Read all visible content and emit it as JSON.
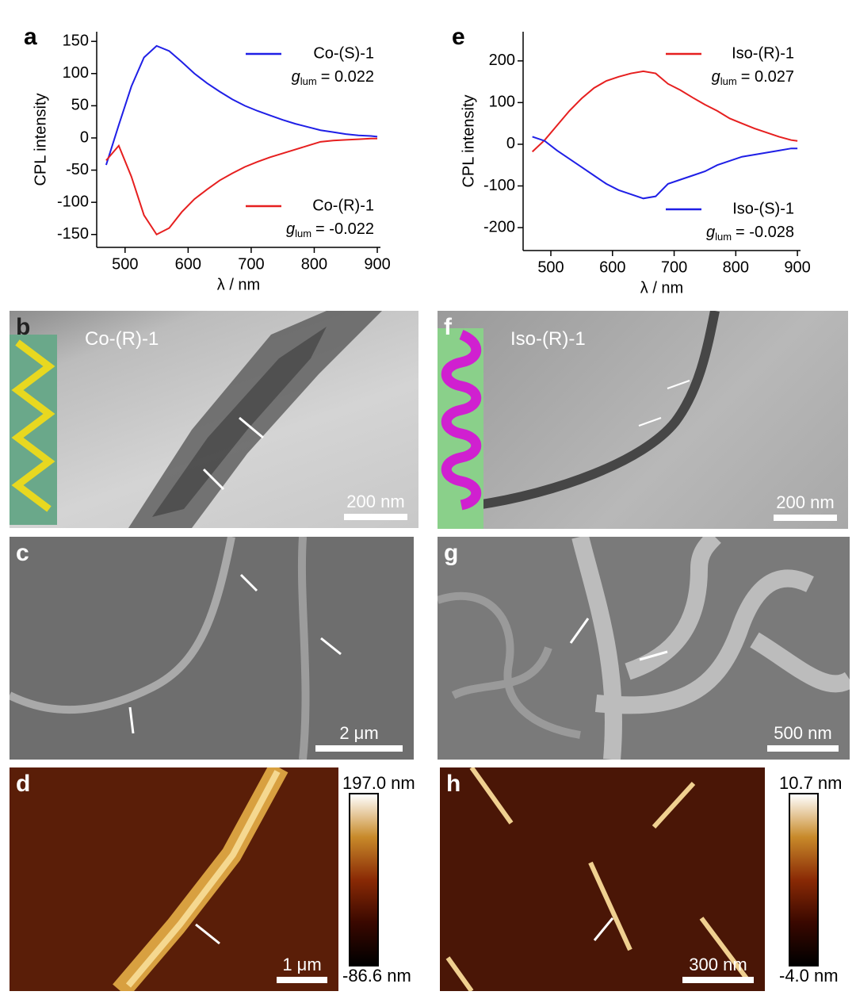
{
  "chart_data": [
    {
      "type": "line",
      "panel_label": "a",
      "y_label": "CPL intensity",
      "x_label": "λ / nm",
      "x": [
        470,
        490,
        510,
        530,
        550,
        570,
        590,
        610,
        630,
        650,
        670,
        690,
        710,
        730,
        750,
        770,
        790,
        810,
        830,
        850,
        870,
        890,
        900
      ],
      "xlim": [
        455,
        905
      ],
      "xticks": [
        500,
        600,
        700,
        800,
        900
      ],
      "ylim": [
        -170,
        165
      ],
      "yticks": [
        -150,
        -100,
        -50,
        0,
        50,
        100,
        150
      ],
      "series": [
        {
          "name": "Co-(S)-1",
          "color": "#1f1fe6",
          "legend_corner": "top-right",
          "values": [
            -42,
            20,
            80,
            125,
            143,
            135,
            118,
            100,
            85,
            72,
            60,
            50,
            42,
            35,
            28,
            22,
            17,
            12,
            9,
            6,
            4,
            3,
            2
          ],
          "annotation": {
            "symbol": "g",
            "subscript": "lum",
            "text": "= 0.022"
          }
        },
        {
          "name": "Co-(R)-1",
          "color": "#e61f1f",
          "legend_corner": "bottom-right",
          "values": [
            -35,
            -12,
            -60,
            -120,
            -150,
            -140,
            -115,
            -95,
            -80,
            -66,
            -55,
            -45,
            -37,
            -30,
            -24,
            -18,
            -12,
            -6,
            -4,
            -3,
            -2,
            -1,
            -1
          ],
          "annotation": {
            "symbol": "g",
            "subscript": "lum",
            "text": "= -0.022"
          }
        }
      ]
    },
    {
      "type": "line",
      "panel_label": "e",
      "y_label": "CPL intensity",
      "x_label": "λ / nm",
      "x": [
        470,
        490,
        510,
        530,
        550,
        570,
        590,
        610,
        630,
        650,
        670,
        690,
        710,
        730,
        750,
        770,
        790,
        810,
        830,
        850,
        870,
        890,
        900
      ],
      "xlim": [
        455,
        905
      ],
      "xticks": [
        500,
        600,
        700,
        800,
        900
      ],
      "ylim": [
        -255,
        270
      ],
      "yticks": [
        -200,
        -100,
        0,
        100,
        200
      ],
      "series": [
        {
          "name": "Iso-(R)-1",
          "color": "#e61f1f",
          "legend_corner": "top-right",
          "values": [
            -18,
            10,
            45,
            80,
            110,
            135,
            152,
            162,
            170,
            175,
            170,
            145,
            130,
            112,
            95,
            80,
            62,
            50,
            38,
            28,
            18,
            10,
            8
          ],
          "annotation": {
            "symbol": "g",
            "subscript": "lum",
            "text": "= 0.027"
          }
        },
        {
          "name": "Iso-(S)-1",
          "color": "#1f1fe6",
          "legend_corner": "bottom-right",
          "values": [
            18,
            8,
            -15,
            -35,
            -55,
            -75,
            -95,
            -110,
            -120,
            -130,
            -125,
            -95,
            -85,
            -75,
            -65,
            -50,
            -40,
            -30,
            -25,
            -20,
            -15,
            -10,
            -10
          ],
          "annotation": {
            "symbol": "g",
            "subscript": "lum",
            "text": "= -0.028"
          }
        }
      ]
    }
  ],
  "panels": [
    {
      "label": "b",
      "sample": "Co-(R)-1",
      "scale_bar": "200 nm"
    },
    {
      "label": "c",
      "scale_bar": "2 μm"
    },
    {
      "label": "d",
      "scale_bar": "1 μm",
      "colorbar": {
        "max": "197.0 nm",
        "min": "-86.6 nm"
      }
    },
    {
      "label": "f",
      "sample": "Iso-(R)-1",
      "scale_bar": "200 nm"
    },
    {
      "label": "g",
      "scale_bar": "500 nm"
    },
    {
      "label": "h",
      "scale_bar": "300 nm",
      "colorbar": {
        "max": "10.7 nm",
        "min": "-4.0 nm"
      }
    }
  ]
}
